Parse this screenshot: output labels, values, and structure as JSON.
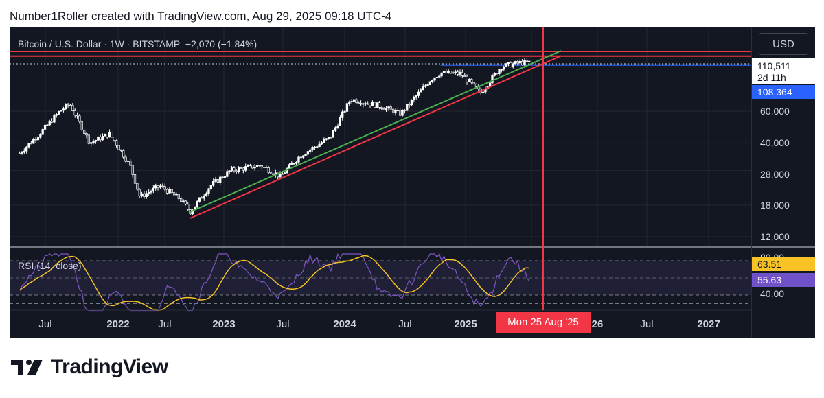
{
  "header": {
    "caption": "Number1Roller created with TradingView.com, Aug 29, 2025 09:18 UTC-4"
  },
  "symbol": {
    "title": "Bitcoin / U.S. Dollar · 1W · BITSTAMP",
    "change": "−2,070 (−1.84%)"
  },
  "rsi": {
    "label": "RSI (14, close)",
    "value_rsi": "63.51",
    "value_ma": "55.63",
    "levels": [
      "80.00",
      "40.00"
    ],
    "colors": {
      "rsi": "#7e57c2",
      "ma": "#f7c325",
      "band": "#7e57c2"
    }
  },
  "price_scale": {
    "currency": "USD",
    "labels": [
      "60,000",
      "40,000",
      "28,000",
      "18,000",
      "12,000"
    ],
    "last_price": "110,511",
    "countdown": "2d 11h",
    "hline_price": "108,364"
  },
  "time_axis": {
    "labels": [
      "Jul",
      "2022",
      "Jul",
      "2023",
      "Jul",
      "2024",
      "Jul",
      "2025",
      "26",
      "Jul",
      "2027"
    ],
    "cursor_label": "Mon 25 Aug '25"
  },
  "footer": {
    "brand": "TradingView",
    "logo_icon": "tradingview-logo-icon"
  },
  "colors": {
    "background": "#131722",
    "candle": "#ffffff",
    "green_trendline": "#4caf50",
    "red_trendline": "#f23645",
    "resistance_lines": "#f23645",
    "hline": "#2962ff",
    "cursor": "#f23645"
  },
  "chart_data": {
    "type": "line",
    "scale": "log",
    "price_series": {
      "x": [
        "2021-06",
        "2021-08",
        "2021-10",
        "2021-11",
        "2022-01",
        "2022-03",
        "2022-05",
        "2022-06",
        "2022-08",
        "2022-10",
        "2022-11",
        "2023-01",
        "2023-03",
        "2023-06",
        "2023-08",
        "2023-10",
        "2024-01",
        "2024-03",
        "2024-06",
        "2024-08",
        "2024-11",
        "2024-12",
        "2025-02",
        "2025-04",
        "2025-06",
        "2025-08"
      ],
      "y": [
        35000,
        45000,
        60000,
        66000,
        40000,
        45000,
        30000,
        20000,
        23000,
        19500,
        16500,
        23000,
        28000,
        30000,
        26000,
        34000,
        43000,
        70000,
        64000,
        58000,
        90000,
        98000,
        97000,
        76000,
        106000,
        112000
      ]
    },
    "ylim": [
      10000,
      130000
    ],
    "ticks": [
      12000,
      18000,
      28000,
      40000,
      60000
    ],
    "hlines": [
      108364
    ],
    "resistance_levels": [
      129000,
      121500
    ],
    "trendlines": [
      {
        "color": "green",
        "from": [
          "2022-11",
          16500
        ],
        "to": [
          "2025-12",
          130000
        ]
      },
      {
        "color": "red",
        "from": [
          "2022-11",
          15200
        ],
        "to": [
          "2025-12",
          122000
        ]
      }
    ],
    "rsi_series": {
      "levels": [
        80,
        40
      ],
      "last_rsi": 63.51,
      "last_ma": 55.63
    }
  }
}
